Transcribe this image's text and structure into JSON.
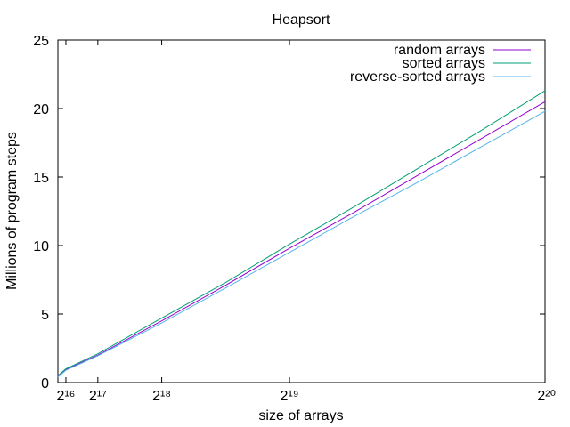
{
  "chart_data": {
    "type": "line",
    "title": "Heapsort",
    "xlabel": "size of arrays",
    "ylabel": "Millions of program steps",
    "xlim": [
      49152,
      1048576
    ],
    "ylim": [
      0,
      25
    ],
    "yticks": [
      0,
      5,
      10,
      15,
      20,
      25
    ],
    "xticks": [
      {
        "value": 65536,
        "label": "2¹⁶"
      },
      {
        "value": 131072,
        "label": "2¹⁷"
      },
      {
        "value": 262144,
        "label": "2¹⁸"
      },
      {
        "value": 524288,
        "label": "2¹⁹"
      },
      {
        "value": 1048576,
        "label": "2²⁰"
      }
    ],
    "legend_position": "top-right",
    "grid": false,
    "x": [
      49152,
      65536,
      131072,
      262144,
      393216,
      524288,
      655360,
      786432,
      917504,
      1048576
    ],
    "series": [
      {
        "name": "random arrays",
        "color": "#9400d3",
        "values": [
          0.45,
          0.95,
          2.0,
          4.5,
          7.1,
          9.8,
          12.4,
          15.1,
          17.8,
          20.5
        ]
      },
      {
        "name": "sorted arrays",
        "color": "#009e73",
        "values": [
          0.5,
          1.0,
          2.1,
          4.7,
          7.3,
          10.1,
          12.8,
          15.6,
          18.4,
          21.3
        ]
      },
      {
        "name": "reverse-sorted arrays",
        "color": "#56b4e9",
        "values": [
          0.4,
          0.9,
          1.95,
          4.35,
          6.9,
          9.5,
          12.1,
          14.6,
          17.2,
          19.8
        ]
      }
    ]
  }
}
